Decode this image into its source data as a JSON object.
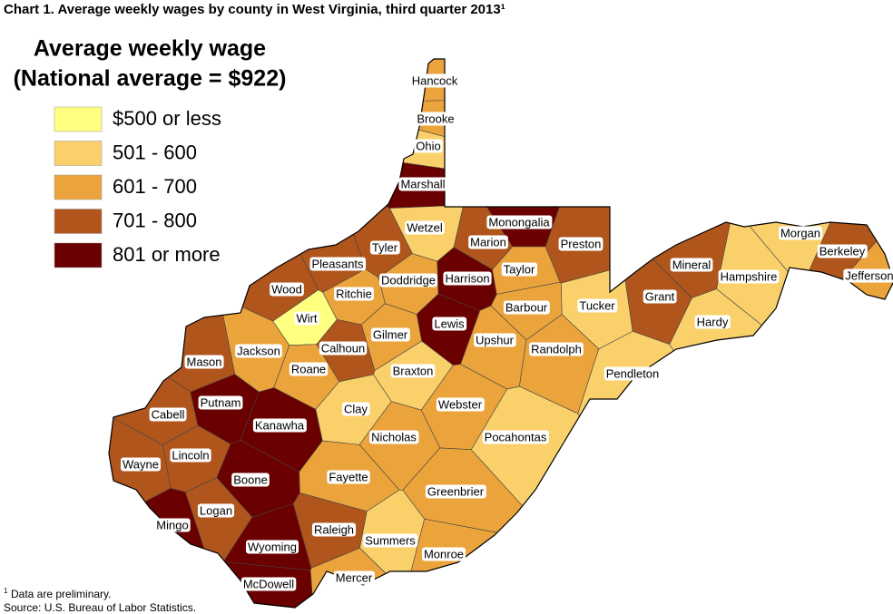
{
  "title": "Chart 1. Average weekly wages by county in West Virginia, third quarter 2013¹",
  "legend": {
    "title": [
      "Average weekly wage",
      "(National average = $922)"
    ],
    "items": [
      {
        "label": "$500 or less",
        "color": "#ffff80"
      },
      {
        "label": "501 - 600",
        "color": "#f9d06a"
      },
      {
        "label": "601 - 700",
        "color": "#eba43c"
      },
      {
        "label": "701 - 800",
        "color": "#b0561c"
      },
      {
        "label": "801 or more",
        "color": "#6b0000"
      }
    ]
  },
  "counties": [
    {
      "name": "Hancock",
      "wage_class": 2
    },
    {
      "name": "Brooke",
      "wage_class": 2
    },
    {
      "name": "Ohio",
      "wage_class": 1
    },
    {
      "name": "Marshall",
      "wage_class": 4
    },
    {
      "name": "Wetzel",
      "wage_class": 1
    },
    {
      "name": "Monongalia",
      "wage_class": 4
    },
    {
      "name": "Preston",
      "wage_class": 3
    },
    {
      "name": "Marion",
      "wage_class": 3
    },
    {
      "name": "Tyler",
      "wage_class": 3
    },
    {
      "name": "Pleasants",
      "wage_class": 3
    },
    {
      "name": "Doddridge",
      "wage_class": 2
    },
    {
      "name": "Harrison",
      "wage_class": 4
    },
    {
      "name": "Taylor",
      "wage_class": 2
    },
    {
      "name": "Wood",
      "wage_class": 3
    },
    {
      "name": "Ritchie",
      "wage_class": 2
    },
    {
      "name": "Wirt",
      "wage_class": 0
    },
    {
      "name": "Calhoun",
      "wage_class": 3
    },
    {
      "name": "Gilmer",
      "wage_class": 2
    },
    {
      "name": "Lewis",
      "wage_class": 4
    },
    {
      "name": "Barbour",
      "wage_class": 2
    },
    {
      "name": "Tucker",
      "wage_class": 1
    },
    {
      "name": "Upshur",
      "wage_class": 2
    },
    {
      "name": "Randolph",
      "wage_class": 2
    },
    {
      "name": "Jackson",
      "wage_class": 2
    },
    {
      "name": "Roane",
      "wage_class": 2
    },
    {
      "name": "Braxton",
      "wage_class": 1
    },
    {
      "name": "Mason",
      "wage_class": 3
    },
    {
      "name": "Putnam",
      "wage_class": 4
    },
    {
      "name": "Kanawha",
      "wage_class": 4
    },
    {
      "name": "Clay",
      "wage_class": 1
    },
    {
      "name": "Webster",
      "wage_class": 2
    },
    {
      "name": "Cabell",
      "wage_class": 3
    },
    {
      "name": "Wayne",
      "wage_class": 3
    },
    {
      "name": "Lincoln",
      "wage_class": 3
    },
    {
      "name": "Boone",
      "wage_class": 4
    },
    {
      "name": "Nicholas",
      "wage_class": 2
    },
    {
      "name": "Fayette",
      "wage_class": 2
    },
    {
      "name": "Greenbrier",
      "wage_class": 2
    },
    {
      "name": "Pocahontas",
      "wage_class": 1
    },
    {
      "name": "Pendleton",
      "wage_class": 1
    },
    {
      "name": "Logan",
      "wage_class": 3
    },
    {
      "name": "Mingo",
      "wage_class": 4
    },
    {
      "name": "Raleigh",
      "wage_class": 3
    },
    {
      "name": "Summers",
      "wage_class": 1
    },
    {
      "name": "Monroe",
      "wage_class": 2
    },
    {
      "name": "Mercer",
      "wage_class": 2
    },
    {
      "name": "Wyoming",
      "wage_class": 4
    },
    {
      "name": "McDowell",
      "wage_class": 4
    },
    {
      "name": "Grant",
      "wage_class": 3
    },
    {
      "name": "Mineral",
      "wage_class": 3
    },
    {
      "name": "Hampshire",
      "wage_class": 1
    },
    {
      "name": "Hardy",
      "wage_class": 1
    },
    {
      "name": "Morgan",
      "wage_class": 1
    },
    {
      "name": "Berkeley",
      "wage_class": 3
    },
    {
      "name": "Jefferson",
      "wage_class": 2
    }
  ],
  "footnote": {
    "marker": "1",
    "text": "Data are preliminary."
  },
  "source": "Source: U.S. Bureau of Labor Statistics."
}
